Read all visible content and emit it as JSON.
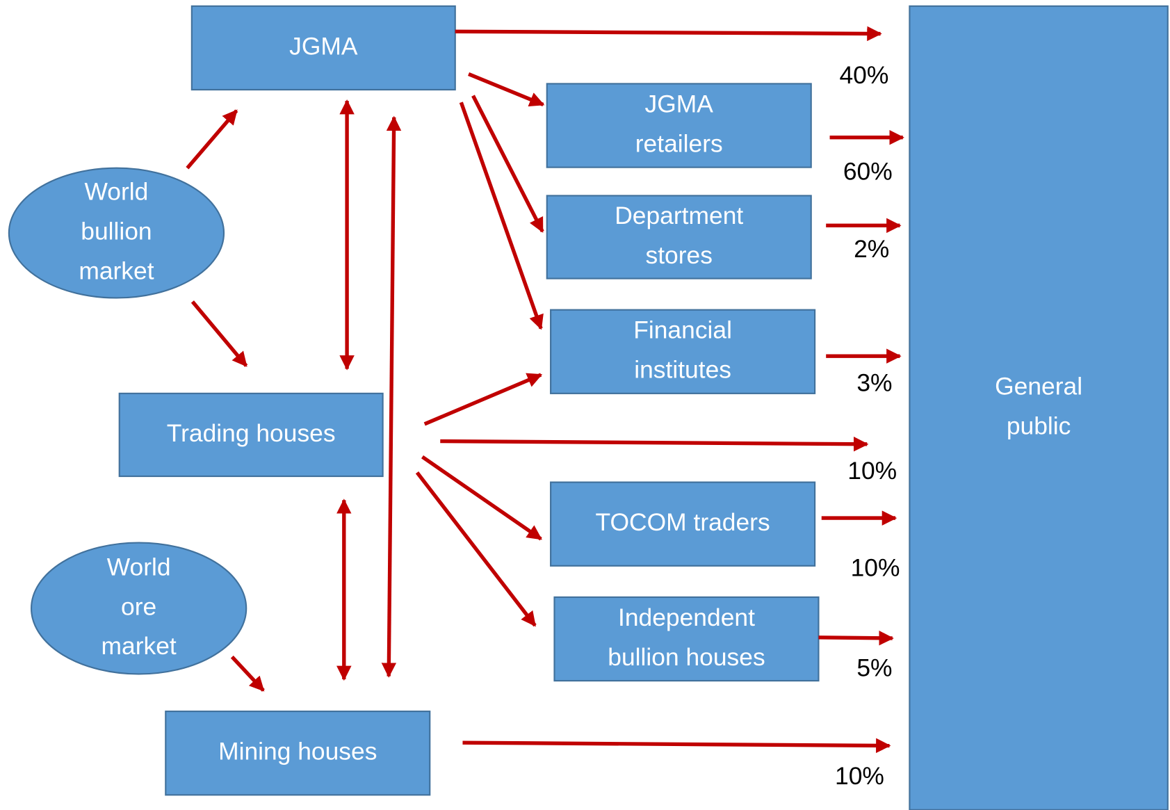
{
  "nodes": [
    {
      "label": [
        "JGMA"
      ]
    },
    {
      "label": [
        "JGMA",
        "retailers"
      ]
    },
    {
      "label": [
        "Department",
        "stores"
      ]
    },
    {
      "label": [
        "Financial",
        "institutes"
      ]
    },
    {
      "label": [
        "Trading houses"
      ]
    },
    {
      "label": [
        "TOCOM traders"
      ]
    },
    {
      "label": [
        "Independent",
        "bullion houses"
      ]
    },
    {
      "label": [
        "Mining houses"
      ]
    },
    {
      "label": [
        "General",
        "public"
      ]
    },
    {
      "label": [
        "World",
        "bullion",
        "market"
      ]
    },
    {
      "label": [
        "World",
        "ore",
        "market"
      ]
    }
  ],
  "flow_labels": [
    "40%",
    "60%",
    "2%",
    "3%",
    "10%",
    "10%",
    "5%",
    "10%"
  ]
}
